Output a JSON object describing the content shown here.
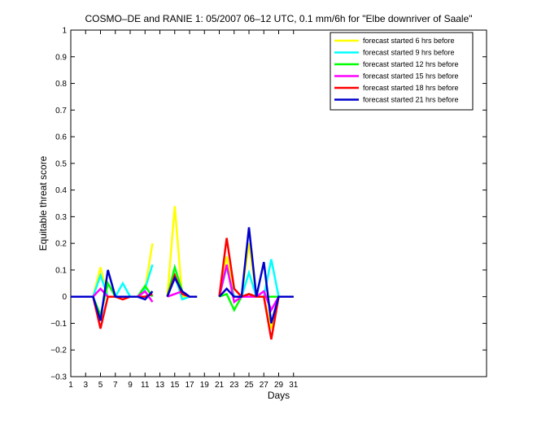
{
  "chart_data": {
    "type": "line",
    "title": "COSMO–DE and RANIE 1: 05/2007 06–12 UTC, 0.1 mm/6h for \"Elbe downriver of Saale\"",
    "xlabel": "Days",
    "ylabel": "Equitable threat score",
    "xlim": [
      1,
      57
    ],
    "ylim": [
      -0.3,
      1
    ],
    "xticks": [
      1,
      3,
      5,
      7,
      9,
      11,
      13,
      15,
      17,
      19,
      21,
      23,
      25,
      27,
      29,
      31
    ],
    "yticks": [
      -0.3,
      -0.2,
      -0.1,
      0,
      0.1,
      0.2,
      0.3,
      0.4,
      0.5,
      0.6,
      0.7,
      0.8,
      0.9,
      1
    ],
    "ytick_labels": [
      "−0.3",
      "−0.2",
      "−0.1",
      "0",
      "0.1",
      "0.2",
      "0.3",
      "0.4",
      "0.5",
      "0.6",
      "0.7",
      "0.8",
      "0.9",
      "1"
    ],
    "legend_position": "top-right",
    "series": [
      {
        "name": "forecast started 6 hrs before",
        "color": "#ffff00",
        "x": [
          1,
          2,
          3,
          4,
          5,
          6,
          7,
          8,
          9,
          10,
          11,
          12,
          null,
          14,
          15,
          16,
          17,
          18,
          null,
          null,
          21,
          22,
          23,
          24,
          25,
          26,
          27,
          28,
          29,
          30,
          31
        ],
        "y": [
          0,
          0,
          0,
          0,
          0.11,
          0,
          0,
          0,
          0,
          0,
          0.03,
          0.2,
          null,
          0,
          0.34,
          0,
          0,
          0,
          null,
          null,
          0,
          0.15,
          0,
          0,
          0.2,
          0,
          0,
          -0.12,
          0,
          0,
          0
        ]
      },
      {
        "name": "forecast started 9 hrs before",
        "color": "#00ffff",
        "x": [
          1,
          2,
          3,
          4,
          5,
          6,
          7,
          8,
          9,
          10,
          11,
          12,
          null,
          14,
          15,
          16,
          17,
          18,
          null,
          null,
          21,
          22,
          23,
          24,
          25,
          26,
          27,
          28,
          29,
          30,
          31
        ],
        "y": [
          0,
          0,
          0,
          0,
          0.08,
          0,
          0,
          0.05,
          0,
          0,
          0.03,
          0.12,
          null,
          0,
          0.08,
          -0.01,
          0,
          0,
          null,
          null,
          0,
          0.11,
          0,
          0,
          0.09,
          0,
          0,
          0.14,
          0,
          0,
          0
        ]
      },
      {
        "name": "forecast started 12 hrs before",
        "color": "#00ff00",
        "x": [
          1,
          2,
          3,
          4,
          5,
          6,
          7,
          8,
          9,
          10,
          11,
          12,
          null,
          14,
          15,
          16,
          17,
          18,
          null,
          null,
          21,
          22,
          23,
          24,
          25,
          26,
          27,
          28,
          29,
          30,
          31
        ],
        "y": [
          0,
          0,
          0,
          0,
          -0.07,
          0.05,
          0,
          0,
          0,
          0,
          0.04,
          0,
          null,
          0,
          0.11,
          0.02,
          0,
          0,
          null,
          null,
          0,
          0.01,
          -0.05,
          0,
          0.01,
          0,
          0,
          0,
          0,
          0,
          0
        ]
      },
      {
        "name": "forecast started 15 hrs before",
        "color": "#ff00ff",
        "x": [
          1,
          2,
          3,
          4,
          5,
          6,
          7,
          8,
          9,
          10,
          11,
          12,
          null,
          14,
          15,
          16,
          17,
          18,
          null,
          null,
          21,
          22,
          23,
          24,
          25,
          26,
          27,
          28,
          29,
          30,
          31
        ],
        "y": [
          0,
          0,
          0,
          0,
          0.03,
          0,
          0,
          0,
          0,
          0,
          0.02,
          -0.02,
          null,
          0,
          0.01,
          0.02,
          0,
          0,
          null,
          null,
          0,
          0.12,
          -0.02,
          0,
          0,
          0,
          0.02,
          -0.05,
          0,
          0,
          0
        ]
      },
      {
        "name": "forecast started 18 hrs before",
        "color": "#ff0000",
        "x": [
          1,
          2,
          3,
          4,
          5,
          6,
          7,
          8,
          9,
          10,
          11,
          12,
          null,
          14,
          15,
          16,
          17,
          18,
          null,
          null,
          21,
          22,
          23,
          24,
          25,
          26,
          27,
          28,
          29,
          30,
          31
        ],
        "y": [
          0,
          0,
          0,
          0,
          -0.12,
          0,
          0,
          -0.01,
          0,
          0,
          0,
          0.01,
          null,
          0,
          0.08,
          0.01,
          0,
          0,
          null,
          null,
          0,
          0.22,
          0.03,
          0,
          0.01,
          0,
          0,
          -0.16,
          0,
          0,
          0
        ]
      },
      {
        "name": "forecast started 21 hrs before",
        "color": "#0000cc",
        "x": [
          1,
          2,
          3,
          4,
          5,
          6,
          7,
          8,
          9,
          10,
          11,
          12,
          null,
          14,
          15,
          16,
          17,
          18,
          null,
          null,
          21,
          22,
          23,
          24,
          25,
          26,
          27,
          28,
          29,
          30,
          31
        ],
        "y": [
          0,
          0,
          0,
          0,
          -0.09,
          0.1,
          0,
          0,
          0,
          0,
          -0.01,
          0.02,
          null,
          0,
          0.07,
          0.02,
          0,
          0,
          null,
          null,
          0,
          0.03,
          0,
          0,
          0.26,
          0,
          0.13,
          -0.1,
          0,
          0,
          0
        ]
      }
    ]
  }
}
